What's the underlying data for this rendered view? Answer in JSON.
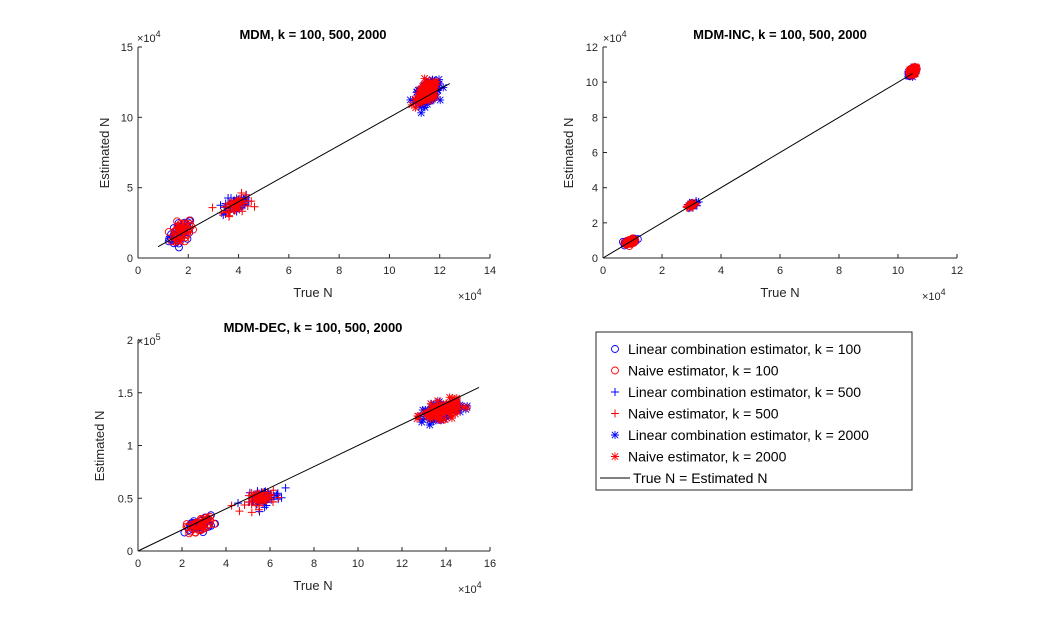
{
  "chart_data": [
    {
      "type": "scatter",
      "title": "MDM, k = 100, 500, 2000",
      "xlabel": "True N",
      "ylabel": "Estimated N",
      "xlim": [
        0,
        14
      ],
      "ylim": [
        0,
        15
      ],
      "x_ticks": [
        "0",
        "2",
        "4",
        "6",
        "8",
        "10",
        "12",
        "14"
      ],
      "y_ticks": [
        "0",
        "5",
        "10",
        "15"
      ],
      "x_exponent": "×10",
      "x_exponent_power": "4",
      "y_exponent": "×10",
      "y_exponent_power": "4",
      "units_note": "values in units of 10^4",
      "clusters": [
        {
          "k": 100,
          "x_center": 1.7,
          "y_center": 1.8,
          "x_spread": 0.6,
          "y_spread": 1.5
        },
        {
          "k": 500,
          "x_center": 3.9,
          "y_center": 3.8,
          "x_spread": 0.7,
          "y_spread": 1.2
        },
        {
          "k": 2000,
          "x_center": 11.5,
          "y_center": 11.7,
          "x_spread": 0.6,
          "y_spread": 1.4
        }
      ],
      "reference_line": {
        "x": [
          0.8,
          12.4
        ],
        "y": [
          0.8,
          12.4
        ]
      }
    },
    {
      "type": "scatter",
      "title": "MDM-INC, k = 100, 500, 2000",
      "xlabel": "True N",
      "ylabel": "Estimated N",
      "xlim": [
        0,
        12
      ],
      "ylim": [
        0,
        12
      ],
      "x_ticks": [
        "0",
        "2",
        "4",
        "6",
        "8",
        "10",
        "12"
      ],
      "y_ticks": [
        "0",
        "2",
        "4",
        "6",
        "8",
        "10",
        "12"
      ],
      "x_exponent": "×10",
      "x_exponent_power": "4",
      "y_exponent": "×10",
      "y_exponent_power": "4",
      "units_note": "values in units of 10^4",
      "clusters": [
        {
          "k": 100,
          "x_center": 0.95,
          "y_center": 0.95,
          "x_spread": 0.25,
          "y_spread": 0.25
        },
        {
          "k": 500,
          "x_center": 3.0,
          "y_center": 3.0,
          "x_spread": 0.2,
          "y_spread": 0.3
        },
        {
          "k": 2000,
          "x_center": 10.5,
          "y_center": 10.6,
          "x_spread": 0.15,
          "y_spread": 0.4
        }
      ],
      "reference_line": {
        "x": [
          0,
          10.5
        ],
        "y": [
          0,
          10.5
        ]
      }
    },
    {
      "type": "scatter",
      "title": "MDM-DEC, k = 100, 500, 2000",
      "xlabel": "True N",
      "ylabel": "Estimated N",
      "xlim": [
        0,
        16
      ],
      "ylim": [
        0,
        2
      ],
      "x_ticks": [
        "0",
        "2",
        "4",
        "6",
        "8",
        "10",
        "12",
        "14",
        "16"
      ],
      "y_ticks": [
        "0",
        "0.5",
        "1",
        "1.5",
        "2"
      ],
      "x_exponent": "×10",
      "x_exponent_power": "4",
      "y_exponent": "×10",
      "y_exponent_power": "5",
      "units_note": "x in units of 10^4, y in units of 10^5",
      "clusters": [
        {
          "k": 100,
          "x_center": 2.8,
          "y_center": 0.25,
          "x_spread": 0.8,
          "y_spread": 0.12
        },
        {
          "k": 500,
          "x_center": 5.7,
          "y_center": 0.5,
          "x_spread": 1.0,
          "y_spread": 0.15
        },
        {
          "k": 2000,
          "x_center": 13.8,
          "y_center": 1.33,
          "x_spread": 1.1,
          "y_spread": 0.15
        }
      ],
      "reference_line": {
        "x": [
          0,
          15.5
        ],
        "y": [
          0,
          1.55
        ]
      }
    }
  ],
  "legend": {
    "placement": "bottom-right",
    "entries": [
      {
        "label": "Linear combination estimator, k = 100",
        "marker": "circle",
        "color": "#0000ff"
      },
      {
        "label": "Naive estimator, k = 100",
        "marker": "circle",
        "color": "#ff0000"
      },
      {
        "label": "Linear combination estimator, k = 500",
        "marker": "plus",
        "color": "#0000ff"
      },
      {
        "label": "Naive estimator, k = 500",
        "marker": "plus",
        "color": "#ff0000"
      },
      {
        "label": "Linear combination estimator, k = 2000",
        "marker": "asterisk",
        "color": "#0000ff"
      },
      {
        "label": "Naive estimator, k = 2000",
        "marker": "asterisk",
        "color": "#ff0000"
      },
      {
        "label": "True N = Estimated N",
        "marker": "line",
        "color": "#000000"
      }
    ]
  },
  "colors": {
    "linear": "#0000ff",
    "naive": "#ff0000",
    "reference": "#000000",
    "axis": "#262626"
  }
}
